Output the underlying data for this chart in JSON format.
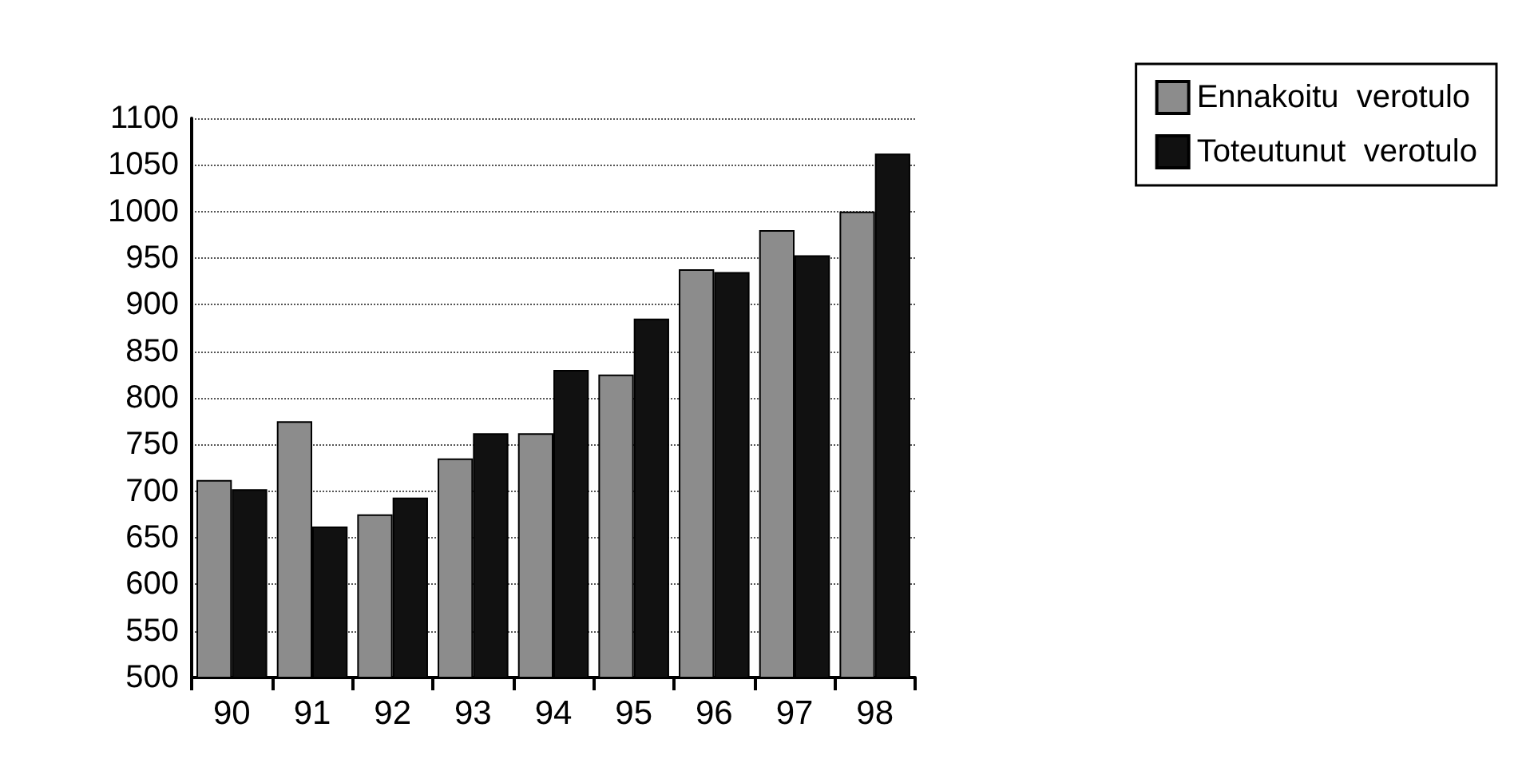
{
  "chart_data": {
    "type": "bar",
    "categories": [
      "90",
      "91",
      "92",
      "93",
      "94",
      "95",
      "96",
      "97",
      "98"
    ],
    "series": [
      {
        "name": "Ennakoitu  verotulo",
        "color": "#8c8c8c",
        "values": [
          712,
          775,
          675,
          735,
          762,
          825,
          938,
          980,
          1000
        ]
      },
      {
        "name": "Toteutunut  verotulo",
        "color": "#111111",
        "values": [
          702,
          662,
          693,
          762,
          830,
          885,
          935,
          953,
          1062
        ]
      }
    ],
    "ylim": [
      500,
      1100
    ],
    "yticks": [
      500,
      550,
      600,
      650,
      700,
      750,
      800,
      850,
      900,
      950,
      1000,
      1050,
      1100
    ],
    "grid": "y",
    "legend": "top right"
  }
}
